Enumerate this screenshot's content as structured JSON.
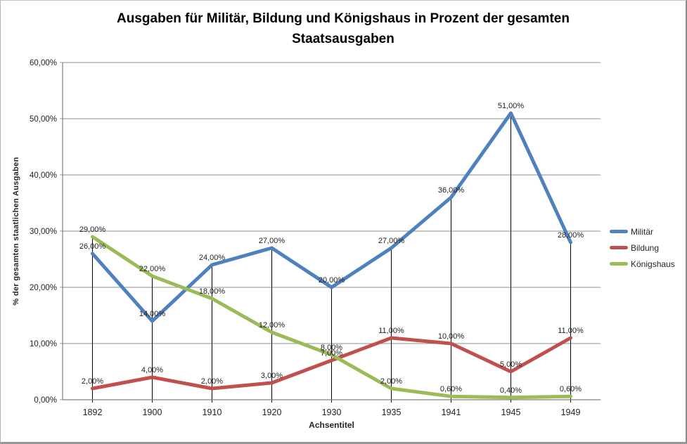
{
  "chart_data": {
    "type": "line",
    "title": "Ausgaben für Militär, Bildung und Königshaus in Prozent der gesamten Staatsausgaben",
    "title_lines": [
      "Ausgaben für Militär, Bildung und Königshaus in Prozent der gesamten",
      "Staatsausgaben"
    ],
    "xlabel": "Achsentitel",
    "ylabel": "% der gesamten staatlichen Ausgaben",
    "categories": [
      "1892",
      "1900",
      "1910",
      "1920",
      "1930",
      "1935",
      "1941",
      "1945",
      "1949"
    ],
    "series": [
      {
        "name": "Militär",
        "color": "#4F81BD",
        "values": [
          26,
          14,
          24,
          27,
          20,
          27,
          36,
          51,
          28
        ]
      },
      {
        "name": "Bildung",
        "color": "#C0504D",
        "values": [
          2,
          4,
          2,
          3,
          7,
          11,
          10,
          5,
          11
        ]
      },
      {
        "name": "Königshaus",
        "color": "#9BBB59",
        "values": [
          29,
          22,
          18,
          12,
          8,
          2,
          0.6,
          0.4,
          0.6
        ]
      }
    ],
    "data_labels": [
      [
        "26,00%",
        "14,00%",
        "24,00%",
        "27,00%",
        "20,00%",
        "27,00%",
        "36,00%",
        "51,00%",
        "28,00%"
      ],
      [
        "2,00%",
        "4,00%",
        "2,00%",
        "3,00%",
        "7,00%",
        "11,00%",
        "10,00%",
        "5,00%",
        "11,00%"
      ],
      [
        "29,00%",
        "22,00%",
        "18,00%",
        "12,00%",
        "8,00%",
        "2,00%",
        "0,60%",
        "0,40%",
        "0,60%"
      ]
    ],
    "ylim": [
      0,
      60
    ],
    "ytick_step": 10,
    "ytick_labels": [
      "0,00%",
      "10,00%",
      "20,00%",
      "30,00%",
      "40,00%",
      "50,00%",
      "60,00%"
    ],
    "grid": true,
    "drop_lines": true,
    "legend_position": "right",
    "grid_color": "#8e8e8e",
    "axis_color": "#808080",
    "drop_line_color": "#000000",
    "label_color": "#1f1f1f"
  }
}
